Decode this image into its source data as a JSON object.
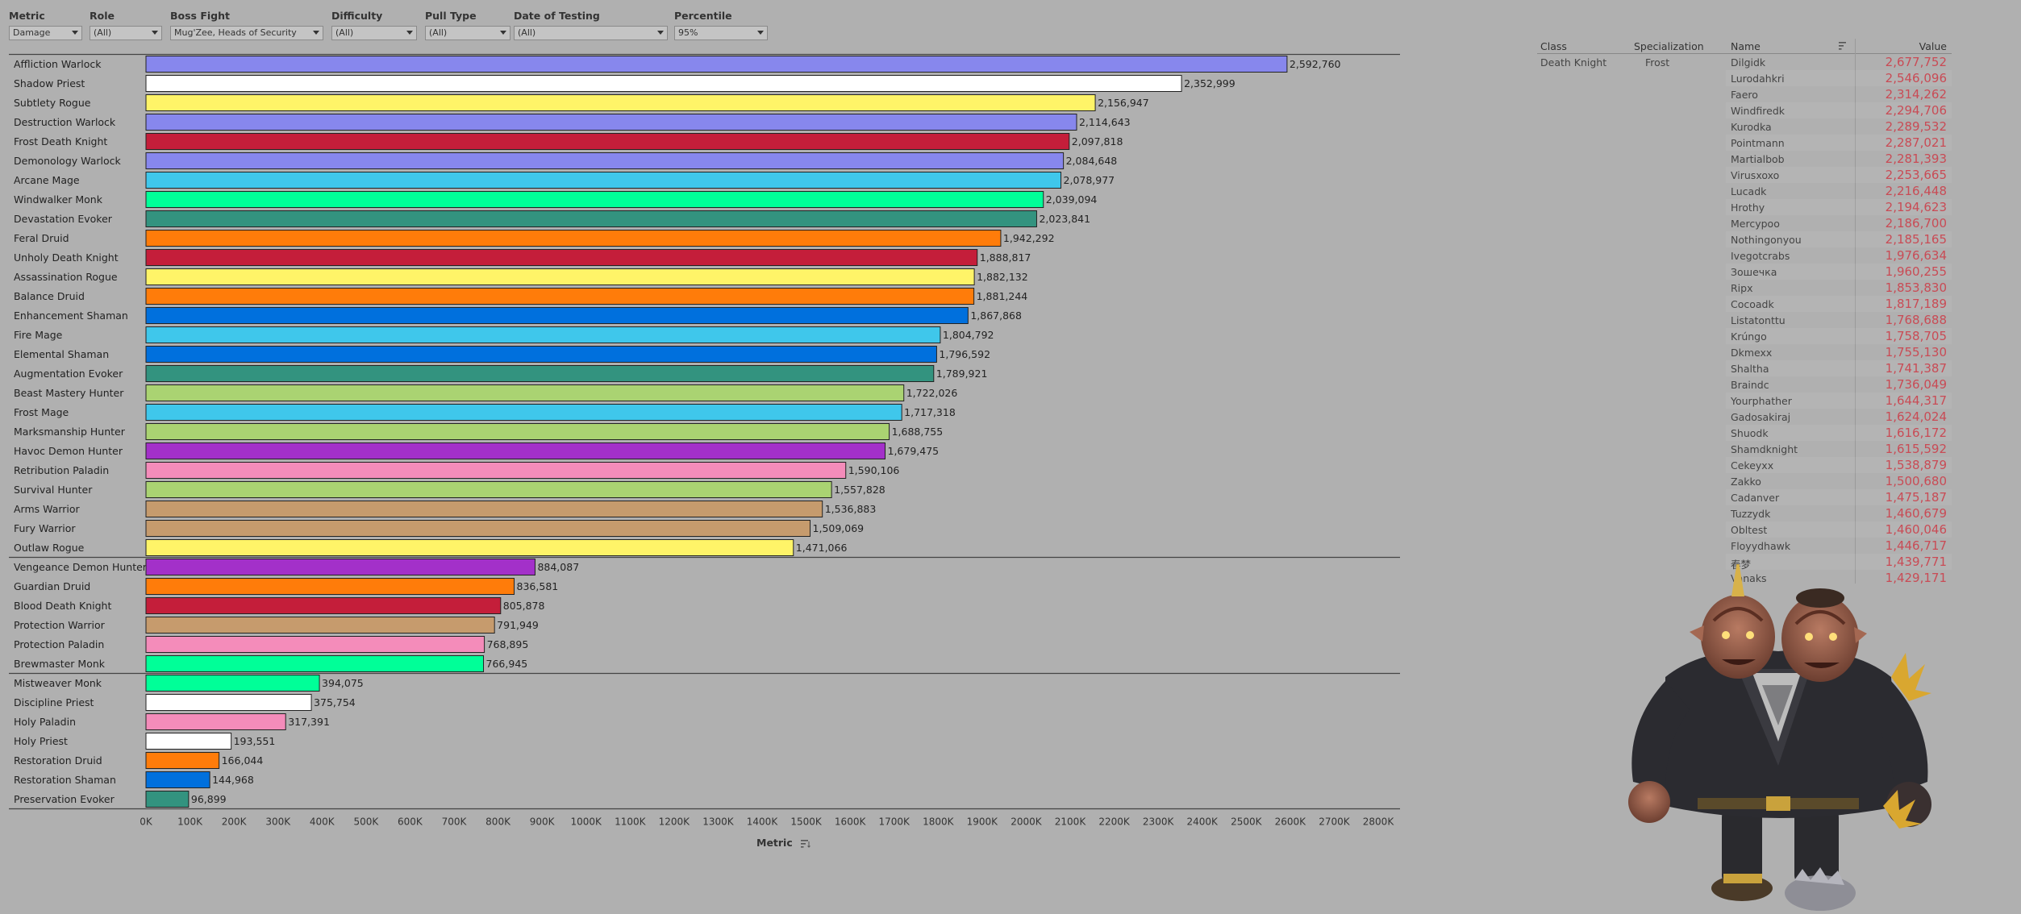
{
  "filters": [
    {
      "label": "Metric",
      "value": "Damage"
    },
    {
      "label": "Role",
      "value": "(All)"
    },
    {
      "label": "Boss Fight",
      "value": "Mug'Zee, Heads of Security"
    },
    {
      "label": "Difficulty",
      "value": "(All)"
    },
    {
      "label": "Pull Type",
      "value": "(All)"
    },
    {
      "label": "Date of Testing",
      "value": "(All)"
    },
    {
      "label": "Percentile",
      "value": "95%"
    }
  ],
  "chart_data": {
    "type": "bar",
    "orientation": "horizontal",
    "xlabel": "Metric",
    "xlim": [
      0,
      2800000
    ],
    "xticks": [
      "0K",
      "100K",
      "200K",
      "300K",
      "400K",
      "500K",
      "600K",
      "700K",
      "800K",
      "900K",
      "1000K",
      "1100K",
      "1200K",
      "1300K",
      "1400K",
      "1500K",
      "1600K",
      "1700K",
      "1800K",
      "1900K",
      "2000K",
      "2100K",
      "2200K",
      "2300K",
      "2400K",
      "2500K",
      "2600K",
      "2700K",
      "2800K"
    ],
    "groups": [
      {
        "bars": [
          {
            "label": "Affliction Warlock",
            "value": 2592760,
            "value_label": "2,592,760",
            "color": "#8787ed"
          },
          {
            "label": "Shadow Priest",
            "value": 2352999,
            "value_label": "2,352,999",
            "color": "#ffffff"
          },
          {
            "label": "Subtlety Rogue",
            "value": 2156947,
            "value_label": "2,156,947",
            "color": "#fff468"
          },
          {
            "label": "Destruction Warlock",
            "value": 2114643,
            "value_label": "2,114,643",
            "color": "#8787ed"
          },
          {
            "label": "Frost Death Knight",
            "value": 2097818,
            "value_label": "2,097,818",
            "color": "#c41e3a"
          },
          {
            "label": "Demonology Warlock",
            "value": 2084648,
            "value_label": "2,084,648",
            "color": "#8787ed"
          },
          {
            "label": "Arcane Mage",
            "value": 2078977,
            "value_label": "2,078,977",
            "color": "#3fc7eb"
          },
          {
            "label": "Windwalker Monk",
            "value": 2039094,
            "value_label": "2,039,094",
            "color": "#00ff98"
          },
          {
            "label": "Devastation Evoker",
            "value": 2023841,
            "value_label": "2,023,841",
            "color": "#33937f"
          },
          {
            "label": "Feral Druid",
            "value": 1942292,
            "value_label": "1,942,292",
            "color": "#ff7c0a"
          },
          {
            "label": "Unholy Death Knight",
            "value": 1888817,
            "value_label": "1,888,817",
            "color": "#c41e3a"
          },
          {
            "label": "Assassination Rogue",
            "value": 1882132,
            "value_label": "1,882,132",
            "color": "#fff468"
          },
          {
            "label": "Balance Druid",
            "value": 1881244,
            "value_label": "1,881,244",
            "color": "#ff7c0a"
          },
          {
            "label": "Enhancement Shaman",
            "value": 1867868,
            "value_label": "1,867,868",
            "color": "#0070dd"
          },
          {
            "label": "Fire Mage",
            "value": 1804792,
            "value_label": "1,804,792",
            "color": "#3fc7eb"
          },
          {
            "label": "Elemental Shaman",
            "value": 1796592,
            "value_label": "1,796,592",
            "color": "#0070dd"
          },
          {
            "label": "Augmentation Evoker",
            "value": 1789921,
            "value_label": "1,789,921",
            "color": "#33937f"
          },
          {
            "label": "Beast Mastery Hunter",
            "value": 1722026,
            "value_label": "1,722,026",
            "color": "#aad372"
          },
          {
            "label": "Frost Mage",
            "value": 1717318,
            "value_label": "1,717,318",
            "color": "#3fc7eb"
          },
          {
            "label": "Marksmanship Hunter",
            "value": 1688755,
            "value_label": "1,688,755",
            "color": "#aad372"
          },
          {
            "label": "Havoc Demon Hunter",
            "value": 1679475,
            "value_label": "1,679,475",
            "color": "#a330c9"
          },
          {
            "label": "Retribution Paladin",
            "value": 1590106,
            "value_label": "1,590,106",
            "color": "#f48cba"
          },
          {
            "label": "Survival Hunter",
            "value": 1557828,
            "value_label": "1,557,828",
            "color": "#aad372"
          },
          {
            "label": "Arms Warrior",
            "value": 1536883,
            "value_label": "1,536,883",
            "color": "#c69b6d"
          },
          {
            "label": "Fury Warrior",
            "value": 1509069,
            "value_label": "1,509,069",
            "color": "#c69b6d"
          },
          {
            "label": "Outlaw Rogue",
            "value": 1471066,
            "value_label": "1,471,066",
            "color": "#fff468"
          }
        ]
      },
      {
        "bars": [
          {
            "label": "Vengeance Demon Hunter",
            "value": 884087,
            "value_label": "884,087",
            "color": "#a330c9"
          },
          {
            "label": "Guardian Druid",
            "value": 836581,
            "value_label": "836,581",
            "color": "#ff7c0a"
          },
          {
            "label": "Blood Death Knight",
            "value": 805878,
            "value_label": "805,878",
            "color": "#c41e3a"
          },
          {
            "label": "Protection Warrior",
            "value": 791949,
            "value_label": "791,949",
            "color": "#c69b6d"
          },
          {
            "label": "Protection Paladin",
            "value": 768895,
            "value_label": "768,895",
            "color": "#f48cba"
          },
          {
            "label": "Brewmaster Monk",
            "value": 766945,
            "value_label": "766,945",
            "color": "#00ff98"
          }
        ]
      },
      {
        "bars": [
          {
            "label": "Mistweaver Monk",
            "value": 394075,
            "value_label": "394,075",
            "color": "#00ff98"
          },
          {
            "label": "Discipline Priest",
            "value": 375754,
            "value_label": "375,754",
            "color": "#ffffff"
          },
          {
            "label": "Holy Paladin",
            "value": 317391,
            "value_label": "317,391",
            "color": "#f48cba"
          },
          {
            "label": "Holy Priest",
            "value": 193551,
            "value_label": "193,551",
            "color": "#ffffff"
          },
          {
            "label": "Restoration Druid",
            "value": 166044,
            "value_label": "166,044",
            "color": "#ff7c0a"
          },
          {
            "label": "Restoration Shaman",
            "value": 144968,
            "value_label": "144,968",
            "color": "#0070dd"
          },
          {
            "label": "Preservation Evoker",
            "value": 96899,
            "value_label": "96,899",
            "color": "#33937f"
          }
        ]
      }
    ]
  },
  "table": {
    "headers": {
      "class": "Class",
      "spec": "Specialization",
      "name": "Name",
      "value": "Value"
    },
    "class": "Death Knight",
    "spec": "Frost",
    "rows": [
      {
        "name": "Dilgidk",
        "value": "2,677,752"
      },
      {
        "name": "Lurodahkri",
        "value": "2,546,096"
      },
      {
        "name": "Faero",
        "value": "2,314,262"
      },
      {
        "name": "Windfiredk",
        "value": "2,294,706"
      },
      {
        "name": "Kurodka",
        "value": "2,289,532"
      },
      {
        "name": "Pointmann",
        "value": "2,287,021"
      },
      {
        "name": "Martialbob",
        "value": "2,281,393"
      },
      {
        "name": "Virusxoxo",
        "value": "2,253,665"
      },
      {
        "name": "Lucadk",
        "value": "2,216,448"
      },
      {
        "name": "Hrothy",
        "value": "2,194,623"
      },
      {
        "name": "Mercypoo",
        "value": "2,186,700"
      },
      {
        "name": "Nothingonyou",
        "value": "2,185,165"
      },
      {
        "name": "Ivegotcrabs",
        "value": "1,976,634"
      },
      {
        "name": "Зошечка",
        "value": "1,960,255"
      },
      {
        "name": "Ripx",
        "value": "1,853,830"
      },
      {
        "name": "Cocoadk",
        "value": "1,817,189"
      },
      {
        "name": "Listatonttu",
        "value": "1,768,688"
      },
      {
        "name": "Krúngo",
        "value": "1,758,705"
      },
      {
        "name": "Dkmexx",
        "value": "1,755,130"
      },
      {
        "name": "Shaltha",
        "value": "1,741,387"
      },
      {
        "name": "Braindc",
        "value": "1,736,049"
      },
      {
        "name": "Yourphather",
        "value": "1,644,317"
      },
      {
        "name": "Gadosakiraj",
        "value": "1,624,024"
      },
      {
        "name": "Shuodk",
        "value": "1,616,172"
      },
      {
        "name": "Shamdknight",
        "value": "1,615,592"
      },
      {
        "name": "Cekeyxx",
        "value": "1,538,879"
      },
      {
        "name": "Zakko",
        "value": "1,500,680"
      },
      {
        "name": "Cadanver",
        "value": "1,475,187"
      },
      {
        "name": "Tuzzydk",
        "value": "1,460,679"
      },
      {
        "name": "Obltest",
        "value": "1,460,046"
      },
      {
        "name": "Floyydhawk",
        "value": "1,446,717"
      },
      {
        "name": "春梦",
        "value": "1,439,771"
      },
      {
        "name": "Vanaks",
        "value": "1,429,171"
      }
    ]
  },
  "image": {
    "subject": "goblin-boss-portrait"
  }
}
